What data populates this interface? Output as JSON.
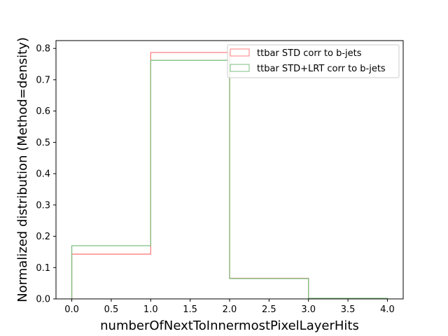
{
  "chart_data": {
    "type": "step-histogram",
    "xlabel": "numberOfNextToInnermostPixelLayerHits",
    "ylabel": "Normalized distribution (Method=density)",
    "xlim": [
      -0.2,
      4.2
    ],
    "ylim": [
      0,
      0.825
    ],
    "xticks": [
      0.0,
      0.5,
      1.0,
      1.5,
      2.0,
      2.5,
      3.0,
      3.5,
      4.0
    ],
    "xtick_labels": [
      "0.0",
      "0.5",
      "1.0",
      "1.5",
      "2.0",
      "2.5",
      "3.0",
      "3.5",
      "4.0"
    ],
    "yticks": [
      0.0,
      0.1,
      0.2,
      0.3,
      0.4,
      0.5,
      0.6,
      0.7,
      0.8
    ],
    "ytick_labels": [
      "0.0",
      "0.1",
      "0.2",
      "0.3",
      "0.4",
      "0.5",
      "0.6",
      "0.7",
      "0.8"
    ],
    "bin_edges": [
      0,
      1,
      2,
      3,
      4
    ],
    "legend_position": "top-right",
    "series": [
      {
        "name": "ttbar STD corr to b-jets",
        "color": "#ff7f7f",
        "values": [
          0.143,
          0.787,
          0.066,
          0.002
        ]
      },
      {
        "name": "ttbar STD+LRT corr to b-jets",
        "color": "#7fbf7f",
        "values": [
          0.17,
          0.762,
          0.065,
          0.002
        ]
      }
    ]
  }
}
